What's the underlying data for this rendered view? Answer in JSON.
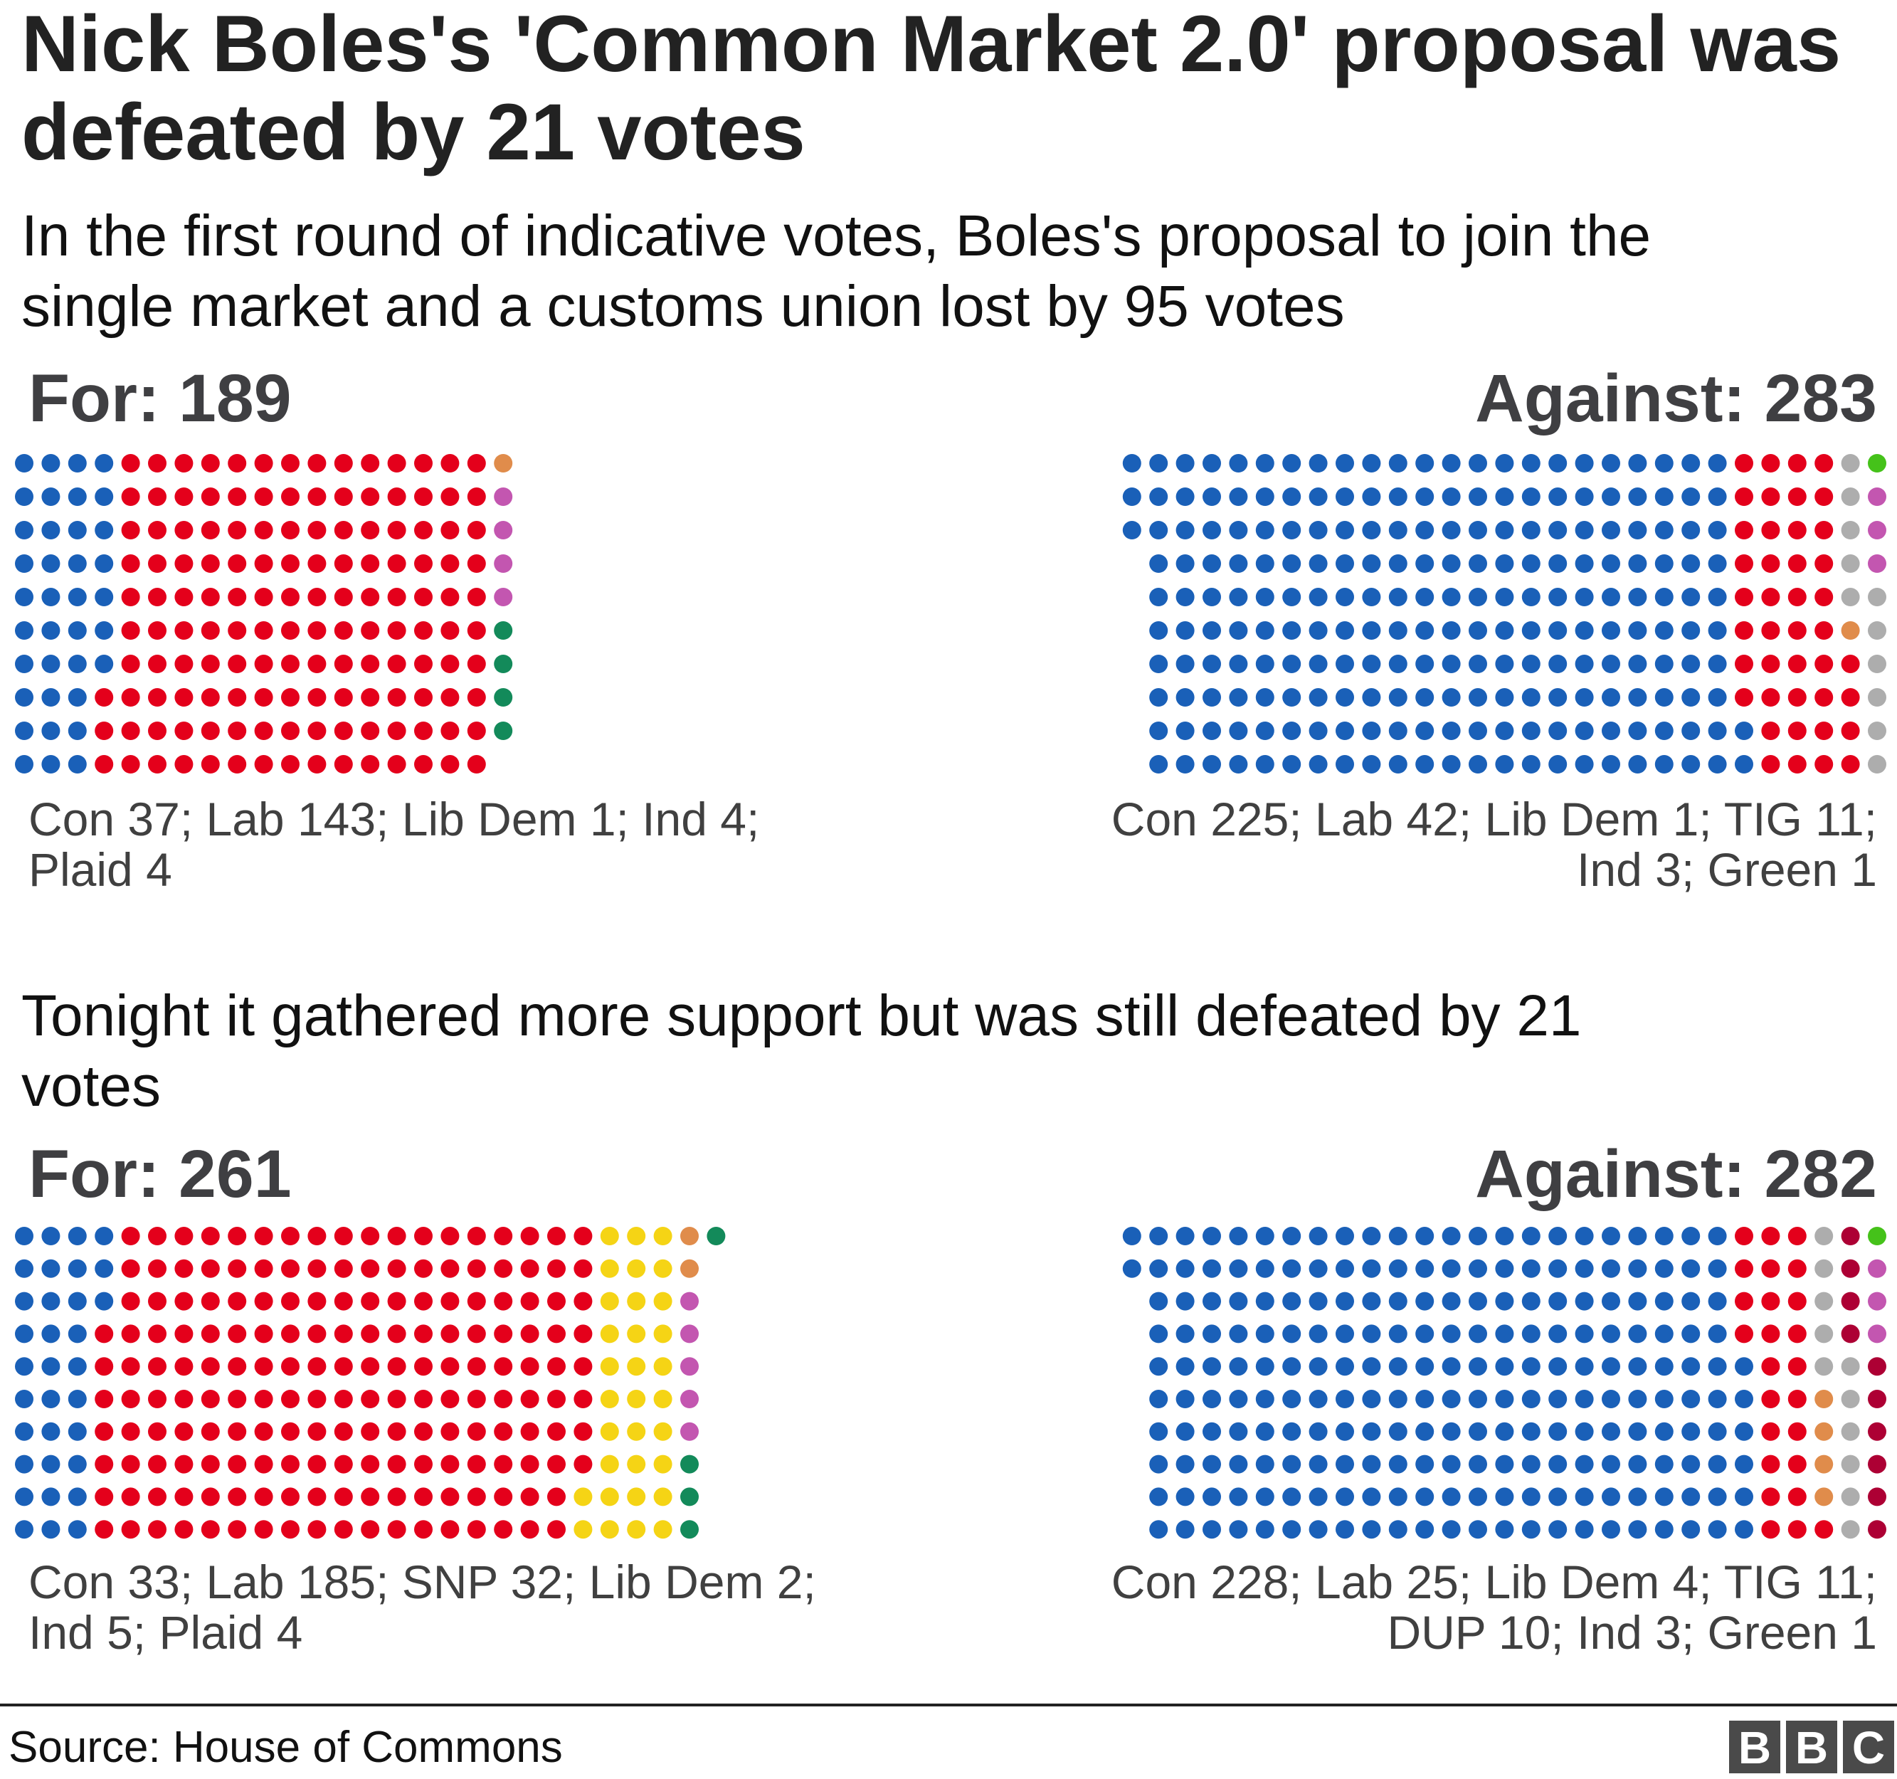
{
  "title": "Nick Boles's 'Common Market 2.0' proposal was defeated by 21 votes",
  "party_colors": {
    "Con": "#1a60b8",
    "Lab": "#e4001b",
    "Lib Dem": "#e08c4b",
    "Ind": "#c356b0",
    "Plaid": "#138a5a",
    "SNP": "#f5d415",
    "TIG": "#adadad",
    "DUP": "#ad0034",
    "Green": "#45c21a"
  },
  "chart_data": [
    {
      "type": "waffle",
      "section": "first",
      "subtitle": "In the first round of indicative votes, Boles's proposal to join the single market and a customs union lost by 95 votes",
      "groups": [
        {
          "label": "For: 189",
          "total": 189,
          "align": "left",
          "legend": [
            "Con 37; Lab 143; Lib Dem 1; Ind 4;",
            "Plaid 4"
          ],
          "parties": [
            {
              "party": "Con",
              "count": 37
            },
            {
              "party": "Lab",
              "count": 143
            },
            {
              "party": "Lib Dem",
              "count": 1
            },
            {
              "party": "Ind",
              "count": 4
            },
            {
              "party": "Plaid",
              "count": 4
            }
          ]
        },
        {
          "label": "Against: 283",
          "total": 283,
          "align": "right",
          "legend": [
            "Con 225; Lab 42; Lib Dem 1; TIG 11;",
            "Ind 3; Green 1"
          ],
          "parties": [
            {
              "party": "Con",
              "count": 225
            },
            {
              "party": "Lab",
              "count": 42
            },
            {
              "party": "Lib Dem",
              "count": 1
            },
            {
              "party": "TIG",
              "count": 11
            },
            {
              "party": "Ind",
              "count": 3
            },
            {
              "party": "Green",
              "count": 1
            }
          ]
        }
      ]
    },
    {
      "type": "waffle",
      "section": "second",
      "subtitle": "Tonight it gathered more support but was still defeated by 21 votes",
      "groups": [
        {
          "label": "For: 261",
          "total": 261,
          "align": "left",
          "legend": [
            "Con 33; Lab 185; SNP 32; Lib Dem 2;",
            "Ind 5; Plaid 4"
          ],
          "parties": [
            {
              "party": "Con",
              "count": 33
            },
            {
              "party": "Lab",
              "count": 185
            },
            {
              "party": "SNP",
              "count": 32
            },
            {
              "party": "Lib Dem",
              "count": 2
            },
            {
              "party": "Ind",
              "count": 5
            },
            {
              "party": "Plaid",
              "count": 4
            }
          ]
        },
        {
          "label": "Against: 282",
          "total": 282,
          "align": "right",
          "legend": [
            "Con 228; Lab 25; Lib Dem 4; TIG 11;",
            "DUP 10; Ind 3; Green 1"
          ],
          "parties": [
            {
              "party": "Con",
              "count": 228
            },
            {
              "party": "Lab",
              "count": 25
            },
            {
              "party": "Lib Dem",
              "count": 4
            },
            {
              "party": "TIG",
              "count": 11
            },
            {
              "party": "DUP",
              "count": 10
            },
            {
              "party": "Ind",
              "count": 3
            },
            {
              "party": "Green",
              "count": 1
            }
          ]
        }
      ]
    }
  ],
  "footer": {
    "source": "Source: House of Commons",
    "logo": [
      "B",
      "B",
      "C"
    ]
  }
}
